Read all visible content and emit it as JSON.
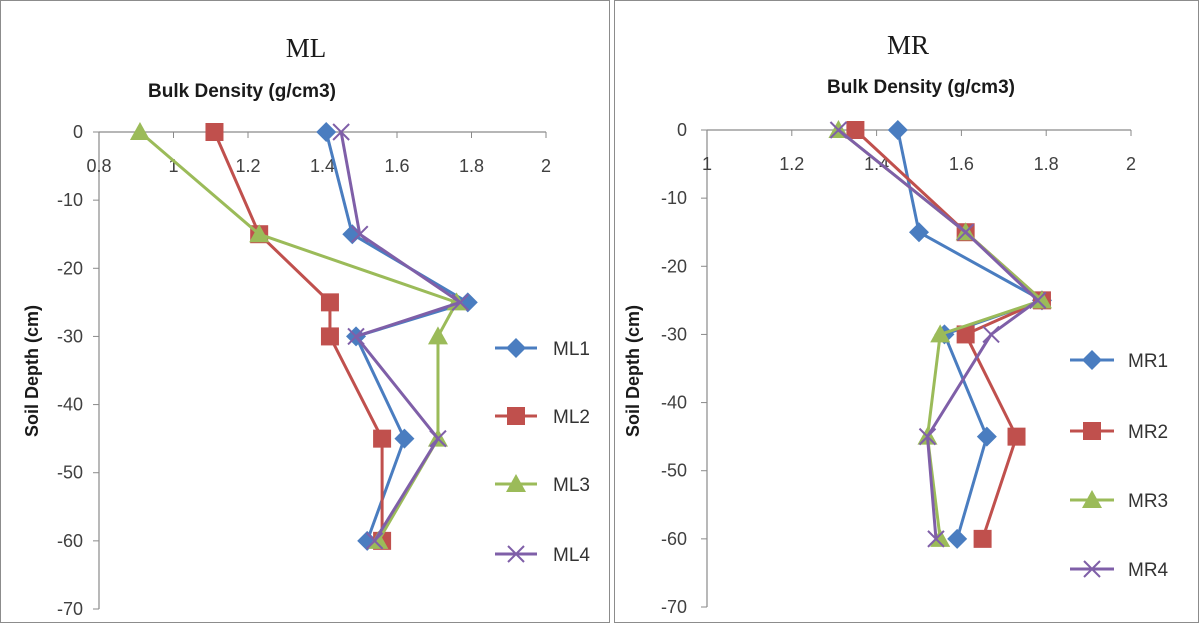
{
  "chart_data": [
    {
      "type": "line",
      "title": "ML",
      "xlabel": "Bulk Density (g/cm3)",
      "ylabel": "Soil Depth (cm)",
      "xlim": [
        0.8,
        2
      ],
      "ylim": [
        -70,
        0
      ],
      "x_ticks": [
        "0.8",
        "1",
        "1.2",
        "1.4",
        "1.6",
        "1.8",
        "2"
      ],
      "y_ticks": [
        "0",
        "-10",
        "-20",
        "-30",
        "-40",
        "-50",
        "-60",
        "-70"
      ],
      "x_axis_position": "top",
      "grid": false,
      "legend_position": "right",
      "series": [
        {
          "name": "ML1",
          "color": "#4a7dc0",
          "marker": "diamond",
          "x": [
            1.41,
            1.48,
            1.79,
            1.49,
            1.62,
            1.52
          ],
          "y": [
            0,
            -15,
            -25,
            -30,
            -45,
            -60
          ]
        },
        {
          "name": "ML2",
          "color": "#c0504d",
          "marker": "square",
          "x": [
            1.11,
            1.23,
            1.42,
            1.42,
            1.56,
            1.56
          ],
          "y": [
            0,
            -15,
            -25,
            -30,
            -45,
            -60
          ]
        },
        {
          "name": "ML3",
          "color": "#9bbb59",
          "marker": "triangle",
          "x": [
            0.91,
            1.23,
            1.76,
            1.71,
            1.71,
            1.55
          ],
          "y": [
            0,
            -15,
            -25,
            -30,
            -45,
            -60
          ]
        },
        {
          "name": "ML4",
          "color": "#7f5fa8",
          "marker": "x",
          "x": [
            1.45,
            1.5,
            1.77,
            1.49,
            1.71,
            1.54
          ],
          "y": [
            0,
            -15,
            -25,
            -30,
            -45,
            -60
          ]
        }
      ]
    },
    {
      "type": "line",
      "title": "MR",
      "xlabel": "Bulk Density (g/cm3)",
      "ylabel": "Soil Depth (cm)",
      "xlim": [
        1,
        2
      ],
      "ylim": [
        -70,
        0
      ],
      "x_ticks": [
        "1",
        "1.2",
        "1.4",
        "1.6",
        "1.8",
        "2"
      ],
      "y_ticks": [
        "0",
        "-10",
        "-20",
        "-30",
        "-40",
        "-50",
        "-60",
        "-70"
      ],
      "x_axis_position": "top",
      "grid": false,
      "legend_position": "right",
      "series": [
        {
          "name": "MR1",
          "color": "#4a7dc0",
          "marker": "diamond",
          "x": [
            1.45,
            1.5,
            1.79,
            1.56,
            1.66,
            1.59
          ],
          "y": [
            0,
            -15,
            -25,
            -30,
            -45,
            -60
          ]
        },
        {
          "name": "MR2",
          "color": "#c0504d",
          "marker": "square",
          "x": [
            1.35,
            1.61,
            1.79,
            1.61,
            1.73,
            1.65
          ],
          "y": [
            0,
            -15,
            -25,
            -30,
            -45,
            -60
          ]
        },
        {
          "name": "MR3",
          "color": "#9bbb59",
          "marker": "triangle",
          "x": [
            1.31,
            1.61,
            1.79,
            1.55,
            1.52,
            1.55
          ],
          "y": [
            0,
            -15,
            -25,
            -30,
            -45,
            -60
          ]
        },
        {
          "name": "MR4",
          "color": "#7f5fa8",
          "marker": "x",
          "x": [
            1.31,
            1.61,
            1.78,
            1.67,
            1.52,
            1.54
          ],
          "y": [
            0,
            -15,
            -25,
            -30,
            -45,
            -60
          ]
        }
      ]
    }
  ]
}
